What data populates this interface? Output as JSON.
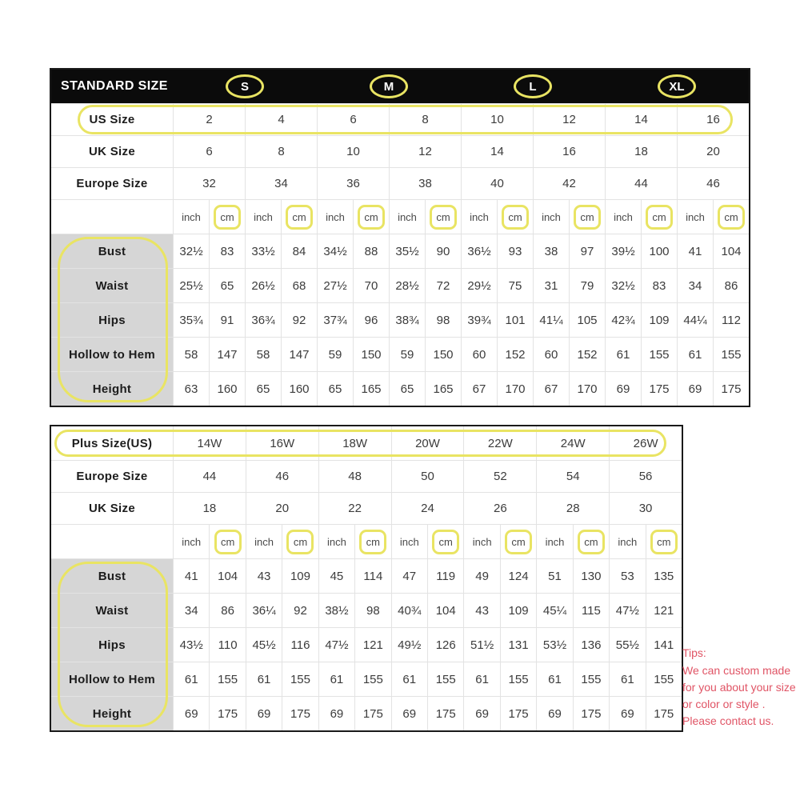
{
  "colors": {
    "header_bg": "#0b0b0b",
    "header_text": "#ffffff",
    "highlight": "#e9e463",
    "label_bg": "#d6d6d6",
    "grid_line": "#e3e3e3",
    "outer_border": "#1a1a1a",
    "num_text": "#3c3c3c",
    "label_text": "#1c1c1c",
    "tips_red": "#e05465",
    "page_bg": "#ffffff"
  },
  "standard_table": {
    "header_label": "STANDARD SIZE",
    "size_groups": [
      "S",
      "M",
      "L",
      "XL"
    ],
    "rows_sizes": [
      {
        "label": "US Size",
        "values": [
          "2",
          "4",
          "6",
          "8",
          "10",
          "12",
          "14",
          "16"
        ],
        "highlighted": true
      },
      {
        "label": "UK Size",
        "values": [
          "6",
          "8",
          "10",
          "12",
          "14",
          "16",
          "18",
          "20"
        ],
        "highlighted": false
      },
      {
        "label": "Europe Size",
        "values": [
          "32",
          "34",
          "36",
          "38",
          "40",
          "42",
          "44",
          "46"
        ],
        "highlighted": false
      }
    ],
    "unit_row": {
      "inch": "inch",
      "cm": "cm",
      "pairs": 8,
      "cm_highlighted": true
    },
    "rows_measurements": [
      {
        "label": "Bust",
        "values": [
          "32½",
          "83",
          "33½",
          "84",
          "34½",
          "88",
          "35½",
          "90",
          "36½",
          "93",
          "38",
          "97",
          "39½",
          "100",
          "41",
          "104"
        ]
      },
      {
        "label": "Waist",
        "values": [
          "25½",
          "65",
          "26½",
          "68",
          "27½",
          "70",
          "28½",
          "72",
          "29½",
          "75",
          "31",
          "79",
          "32½",
          "83",
          "34",
          "86"
        ]
      },
      {
        "label": "Hips",
        "values": [
          "35¾",
          "91",
          "36¾",
          "92",
          "37¾",
          "96",
          "38¾",
          "98",
          "39¾",
          "101",
          "41¼",
          "105",
          "42¾",
          "109",
          "44¼",
          "112"
        ]
      },
      {
        "label": "Hollow to Hem",
        "values": [
          "58",
          "147",
          "58",
          "147",
          "59",
          "150",
          "59",
          "150",
          "60",
          "152",
          "60",
          "152",
          "61",
          "155",
          "61",
          "155"
        ]
      },
      {
        "label": "Height",
        "values": [
          "63",
          "160",
          "65",
          "160",
          "65",
          "165",
          "65",
          "165",
          "67",
          "170",
          "67",
          "170",
          "69",
          "175",
          "69",
          "175"
        ]
      }
    ]
  },
  "plus_table": {
    "rows_sizes": [
      {
        "label": "Plus Size(US)",
        "values": [
          "14W",
          "16W",
          "18W",
          "20W",
          "22W",
          "24W",
          "26W"
        ],
        "highlighted": true
      },
      {
        "label": "Europe Size",
        "values": [
          "44",
          "46",
          "48",
          "50",
          "52",
          "54",
          "56"
        ],
        "highlighted": false
      },
      {
        "label": "UK Size",
        "values": [
          "18",
          "20",
          "22",
          "24",
          "26",
          "28",
          "30"
        ],
        "highlighted": false
      }
    ],
    "unit_row": {
      "inch": "inch",
      "cm": "cm",
      "pairs": 7,
      "cm_highlighted": true
    },
    "rows_measurements": [
      {
        "label": "Bust",
        "values": [
          "41",
          "104",
          "43",
          "109",
          "45",
          "114",
          "47",
          "119",
          "49",
          "124",
          "51",
          "130",
          "53",
          "135"
        ]
      },
      {
        "label": "Waist",
        "values": [
          "34",
          "86",
          "36¼",
          "92",
          "38½",
          "98",
          "40¾",
          "104",
          "43",
          "109",
          "45¼",
          "115",
          "47½",
          "121"
        ]
      },
      {
        "label": "Hips",
        "values": [
          "43½",
          "110",
          "45½",
          "116",
          "47½",
          "121",
          "49½",
          "126",
          "51½",
          "131",
          "53½",
          "136",
          "55½",
          "141"
        ]
      },
      {
        "label": "Hollow to Hem",
        "values": [
          "61",
          "155",
          "61",
          "155",
          "61",
          "155",
          "61",
          "155",
          "61",
          "155",
          "61",
          "155",
          "61",
          "155"
        ]
      },
      {
        "label": "Height",
        "values": [
          "69",
          "175",
          "69",
          "175",
          "69",
          "175",
          "69",
          "175",
          "69",
          "175",
          "69",
          "175",
          "69",
          "175"
        ]
      }
    ]
  },
  "tips": {
    "title": "Tips:",
    "lines": [
      "We can custom made",
      "for you about your size",
      "or color or style .",
      "Please contact us."
    ]
  }
}
